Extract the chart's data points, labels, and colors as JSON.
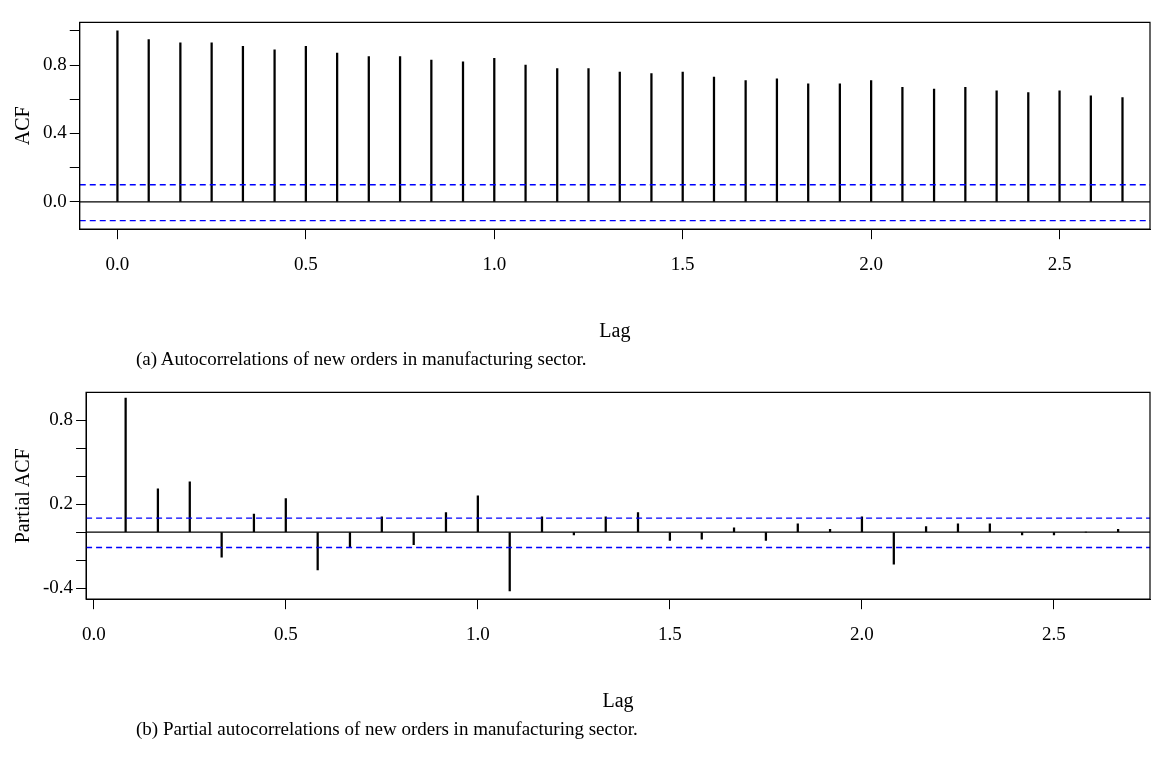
{
  "chart_data": [
    {
      "type": "bar",
      "xlabel": "Lag",
      "ylabel": "ACF",
      "annotations": [
        "(a) Autocorrelations of new orders in manufacturing sector."
      ],
      "x": [
        0,
        0.083,
        0.167,
        0.25,
        0.333,
        0.417,
        0.5,
        0.583,
        0.667,
        0.75,
        0.833,
        0.917,
        1.0,
        1.083,
        1.167,
        1.25,
        1.333,
        1.417,
        1.5,
        1.583,
        1.667,
        1.75,
        1.833,
        1.917,
        2.0,
        2.083,
        2.167,
        2.25,
        2.333,
        2.417,
        2.5,
        2.583,
        2.667
      ],
      "series": [
        {
          "color": "#000000",
          "values": [
            1.0,
            0.95,
            0.93,
            0.93,
            0.91,
            0.89,
            0.91,
            0.87,
            0.85,
            0.85,
            0.83,
            0.82,
            0.84,
            0.8,
            0.78,
            0.78,
            0.76,
            0.75,
            0.76,
            0.73,
            0.71,
            0.72,
            0.69,
            0.69,
            0.71,
            0.67,
            0.66,
            0.67,
            0.65,
            0.64,
            0.65,
            0.62,
            0.61
          ]
        }
      ],
      "xlim": [
        -0.1,
        2.74
      ],
      "ylim": [
        -0.16,
        1.05
      ],
      "xticks": [
        {
          "value": 0,
          "label": "0.0"
        },
        0.5,
        {
          "value": 1,
          "label": "1.0"
        },
        1.5,
        {
          "value": 2,
          "label": "2.0"
        },
        2.5
      ],
      "yticks": [
        {
          "value": 0,
          "label": "0.0"
        },
        {
          "value": 0.2,
          "label": null
        },
        0.4,
        {
          "value": 0.6,
          "label": null
        },
        0.8,
        {
          "value": 1,
          "label": null
        }
      ],
      "ref_lines": [
        {
          "axis": "y",
          "value": 0.1,
          "color": "#0000ff",
          "line_style": "dashed"
        },
        {
          "axis": "y",
          "value": -0.11,
          "color": "#0000ff",
          "line_style": "dashed"
        },
        {
          "axis": "y",
          "value": 0,
          "color": "#000000",
          "line_style": "solid"
        }
      ]
    },
    {
      "type": "bar",
      "xlabel": "Lag",
      "ylabel": "Partial ACF",
      "annotations": [
        "(b) Partial autocorrelations of new orders in manufacturing sector."
      ],
      "x": [
        0.083,
        0.167,
        0.25,
        0.333,
        0.417,
        0.5,
        0.583,
        0.667,
        0.75,
        0.833,
        0.917,
        1.0,
        1.083,
        1.167,
        1.25,
        1.333,
        1.417,
        1.5,
        1.583,
        1.667,
        1.75,
        1.833,
        1.917,
        2.0,
        2.083,
        2.167,
        2.25,
        2.333,
        2.417,
        2.5,
        2.583,
        2.667
      ],
      "series": [
        {
          "color": "#000000",
          "values": [
            0.96,
            0.31,
            0.36,
            -0.18,
            0.13,
            0.24,
            -0.27,
            -0.11,
            0.11,
            -0.09,
            0.14,
            0.26,
            -0.42,
            0.11,
            -0.02,
            0.11,
            0.14,
            -0.06,
            -0.05,
            0.03,
            -0.06,
            0.06,
            0.02,
            0.11,
            -0.23,
            0.04,
            0.06,
            0.06,
            -0.02,
            -0.02,
            0.0,
            0.02
          ]
        }
      ],
      "xlim": [
        -0.02,
        2.75
      ],
      "ylim": [
        -0.48,
        1.0
      ],
      "xticks": [
        {
          "value": 0,
          "label": "0.0"
        },
        0.5,
        {
          "value": 1,
          "label": "1.0"
        },
        1.5,
        {
          "value": 2,
          "label": "2.0"
        },
        2.5
      ],
      "yticks": [
        {
          "value": -0.4,
          "label": "-0.4"
        },
        {
          "value": -0.2,
          "label": null
        },
        {
          "value": 0,
          "label": null
        },
        0.2,
        {
          "value": 0.4,
          "label": null
        },
        {
          "value": 0.6,
          "label": null
        },
        0.8
      ],
      "ref_lines": [
        {
          "axis": "y",
          "value": 0.1,
          "color": "#0000ff",
          "line_style": "dashed"
        },
        {
          "axis": "y",
          "value": -0.11,
          "color": "#0000ff",
          "line_style": "dashed"
        },
        {
          "axis": "y",
          "value": 0,
          "color": "#000000",
          "line_style": "solid"
        }
      ]
    }
  ]
}
